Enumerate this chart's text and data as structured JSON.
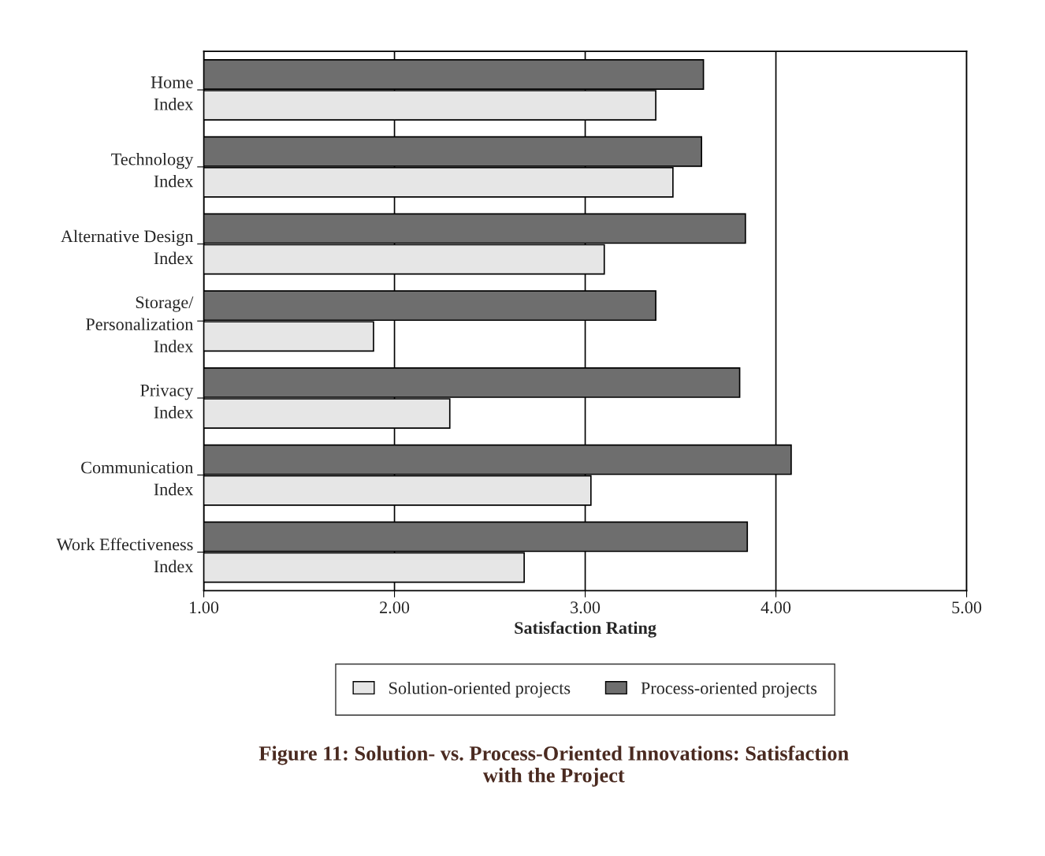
{
  "chart_data": {
    "type": "bar",
    "orientation": "horizontal",
    "title": "Figure 11: Solution- vs. Process-Oriented Innovations: Satisfaction\nwith the Project",
    "xlabel": "Satisfaction Rating",
    "categories": [
      "Home\nIndex",
      "Technology\nIndex",
      "Alternative Design\nIndex",
      "Storage/\nPersonalization\nIndex",
      "Privacy\nIndex",
      "Communication\nIndex",
      "Work Effectiveness\nIndex"
    ],
    "series": [
      {
        "name": "Solution-oriented projects",
        "color": "#e6e6e6",
        "values": [
          3.37,
          3.46,
          3.1,
          1.89,
          2.29,
          3.03,
          2.68
        ]
      },
      {
        "name": "Process-oriented projects",
        "color": "#6e6e6e",
        "values": [
          3.62,
          3.61,
          3.84,
          3.37,
          3.81,
          4.08,
          3.85
        ]
      }
    ],
    "xlim": [
      1,
      5
    ],
    "xticks": [
      {
        "value": 1,
        "label": "1.00"
      },
      {
        "value": 2,
        "label": "2.00"
      },
      {
        "value": 3,
        "label": "3.00"
      },
      {
        "value": 4,
        "label": "4.00"
      },
      {
        "value": 5,
        "label": "5.00"
      }
    ],
    "grid": "x",
    "legend": "bottom"
  }
}
